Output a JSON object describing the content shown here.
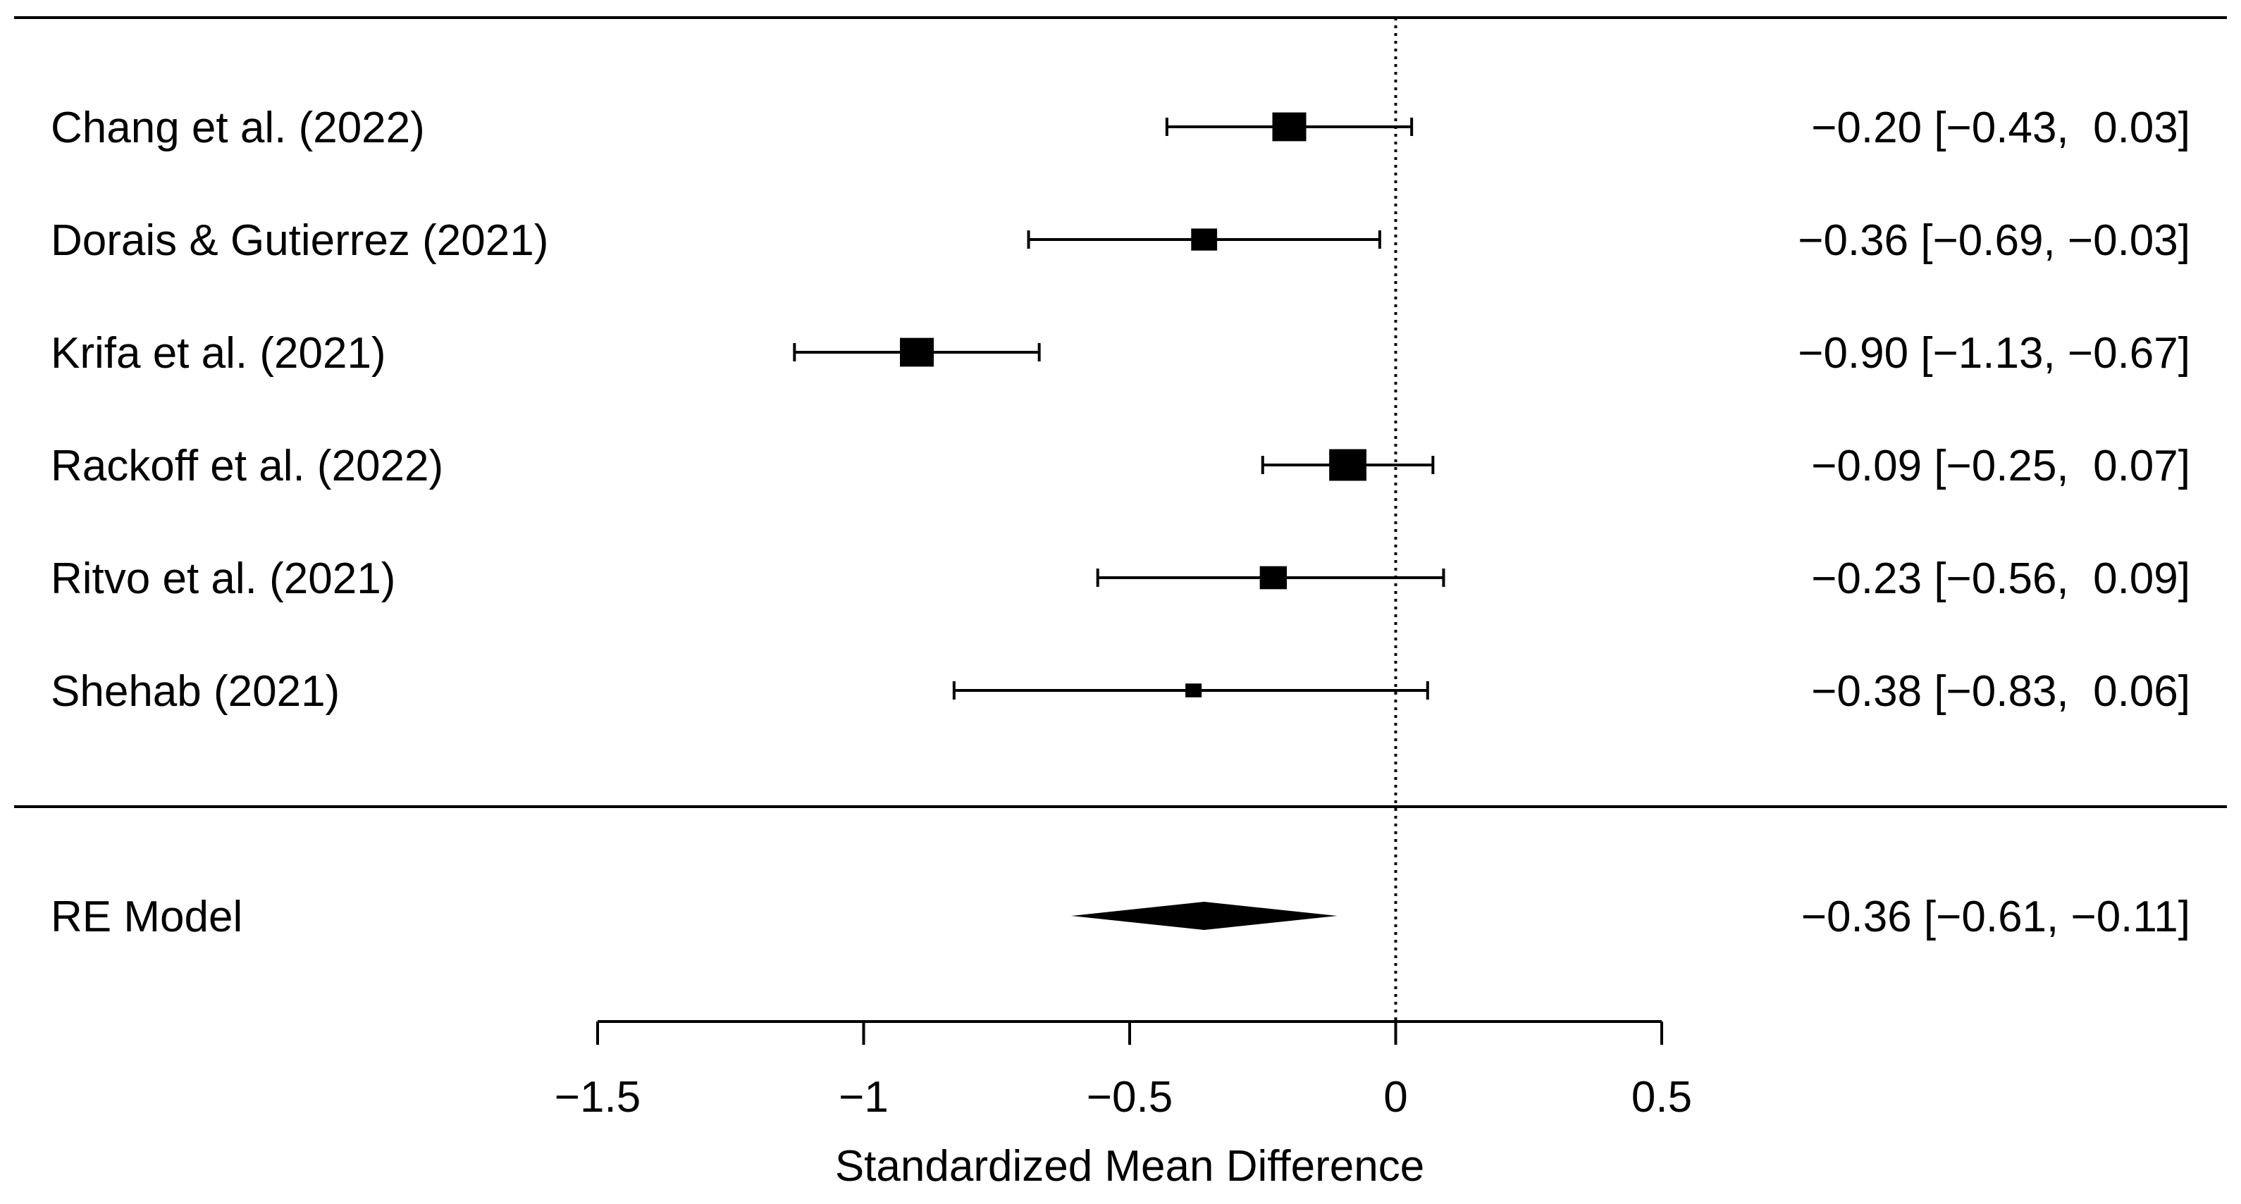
{
  "chart_data": {
    "type": "forest",
    "xlabel": "Standardized Mean Difference",
    "xlim": [
      -1.5,
      0.5
    ],
    "ticks": [
      -1.5,
      -1,
      -0.5,
      0,
      0.5
    ],
    "tick_labels": [
      "−1.5",
      "−1",
      "−0.5",
      "0",
      "0.5"
    ],
    "reference_line": 0,
    "studies": [
      {
        "label": "Chang et al. (2022)",
        "estimate": -0.2,
        "lower": -0.43,
        "upper": 0.03,
        "weight": 1.0,
        "display": "−0.20 [−0.43,  0.03]"
      },
      {
        "label": "Dorais & Gutierrez  (2021)",
        "estimate": -0.36,
        "lower": -0.69,
        "upper": -0.03,
        "weight": 0.65,
        "display": "−0.36 [−0.69, −0.03]"
      },
      {
        "label": "Krifa et al.  (2021)",
        "estimate": -0.9,
        "lower": -1.13,
        "upper": -0.67,
        "weight": 1.0,
        "display": "−0.90 [−1.13, −0.67]"
      },
      {
        "label": "Rackoff et al.  (2022)",
        "estimate": -0.09,
        "lower": -0.25,
        "upper": 0.07,
        "weight": 1.15,
        "display": "−0.09 [−0.25,  0.07]"
      },
      {
        "label": "Ritvo et al. (2021)",
        "estimate": -0.23,
        "lower": -0.56,
        "upper": 0.09,
        "weight": 0.7,
        "display": "−0.23 [−0.56,  0.09]"
      },
      {
        "label": "Shehab  (2021)",
        "estimate": -0.38,
        "lower": -0.83,
        "upper": 0.06,
        "weight": 0.22,
        "display": "−0.38 [−0.83,  0.06]"
      }
    ],
    "summary": {
      "label": "RE Model",
      "estimate": -0.36,
      "lower": -0.61,
      "upper": -0.11,
      "display": "−0.36 [−0.61, −0.11]"
    }
  }
}
